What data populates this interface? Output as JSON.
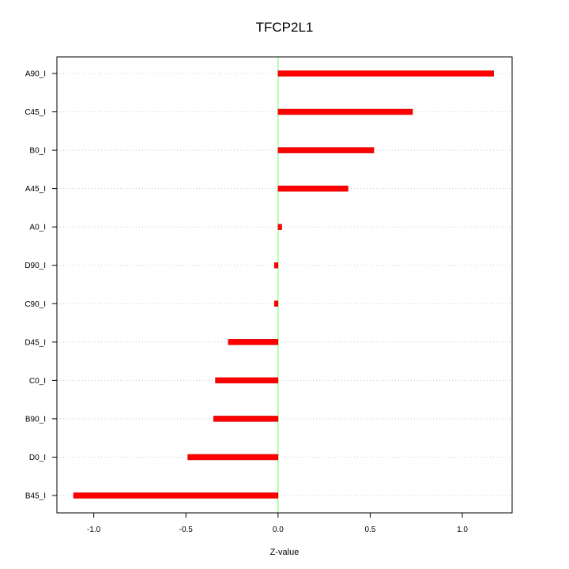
{
  "chart_data": {
    "type": "bar",
    "orientation": "horizontal",
    "title": "TFCP2L1",
    "xlabel": "Z-value",
    "ylabel": "",
    "xlim": [
      -1.2,
      1.27
    ],
    "xticks": [
      -1.0,
      -0.5,
      0.0,
      0.5,
      1.0
    ],
    "xtick_labels": [
      "-1.0",
      "-0.5",
      "0.0",
      "0.5",
      "1.0"
    ],
    "categories": [
      "A90_I",
      "C45_I",
      "B0_I",
      "A45_I",
      "A0_I",
      "D90_I",
      "C90_I",
      "D45_I",
      "C0_I",
      "B90_I",
      "D0_I",
      "B45_I"
    ],
    "values": [
      1.17,
      0.73,
      0.52,
      0.38,
      0.02,
      -0.02,
      -0.02,
      -0.27,
      -0.34,
      -0.35,
      -0.49,
      -1.11
    ],
    "reference_line": 0,
    "grid": "horizontal dotted",
    "colors": {
      "bar": "#ff0000",
      "bar_edge": "#cc0000",
      "zero_line": "#7fff7f",
      "grid": "#c8c8c8",
      "axis": "#000000"
    }
  }
}
